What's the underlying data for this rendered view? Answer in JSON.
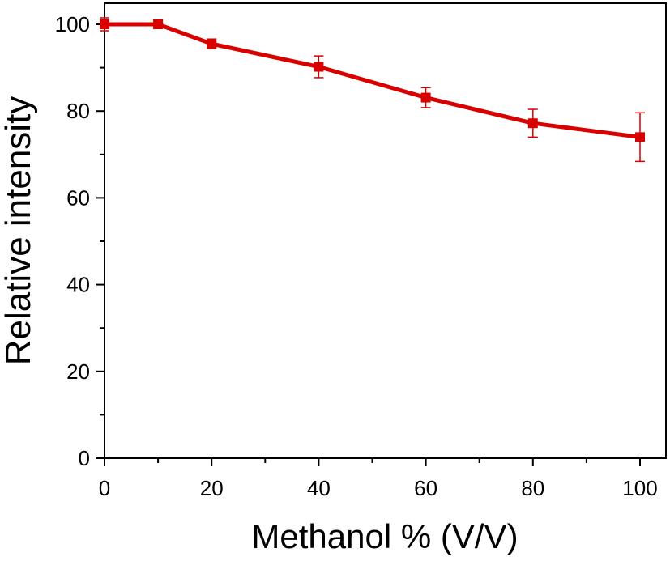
{
  "chart_data": {
    "type": "line",
    "title": "",
    "xlabel": "Methanol % (V/V)",
    "ylabel": "Relative intensity",
    "xlim": [
      0,
      105
    ],
    "ylim": [
      0,
      105
    ],
    "x_ticks": [
      0,
      20,
      40,
      60,
      80,
      100
    ],
    "y_ticks": [
      0,
      20,
      40,
      60,
      80,
      100
    ],
    "x": [
      0,
      10,
      20,
      40,
      60,
      80,
      100
    ],
    "series": [
      {
        "values": [
          100,
          100,
          95.5,
          90.2,
          83.1,
          77.2,
          74.0
        ],
        "errors": [
          1.5,
          0.9,
          1.1,
          2.5,
          2.3,
          3.2,
          5.6
        ],
        "color": "#d90000",
        "marker": "square"
      }
    ],
    "grid": false,
    "legend": "none"
  }
}
